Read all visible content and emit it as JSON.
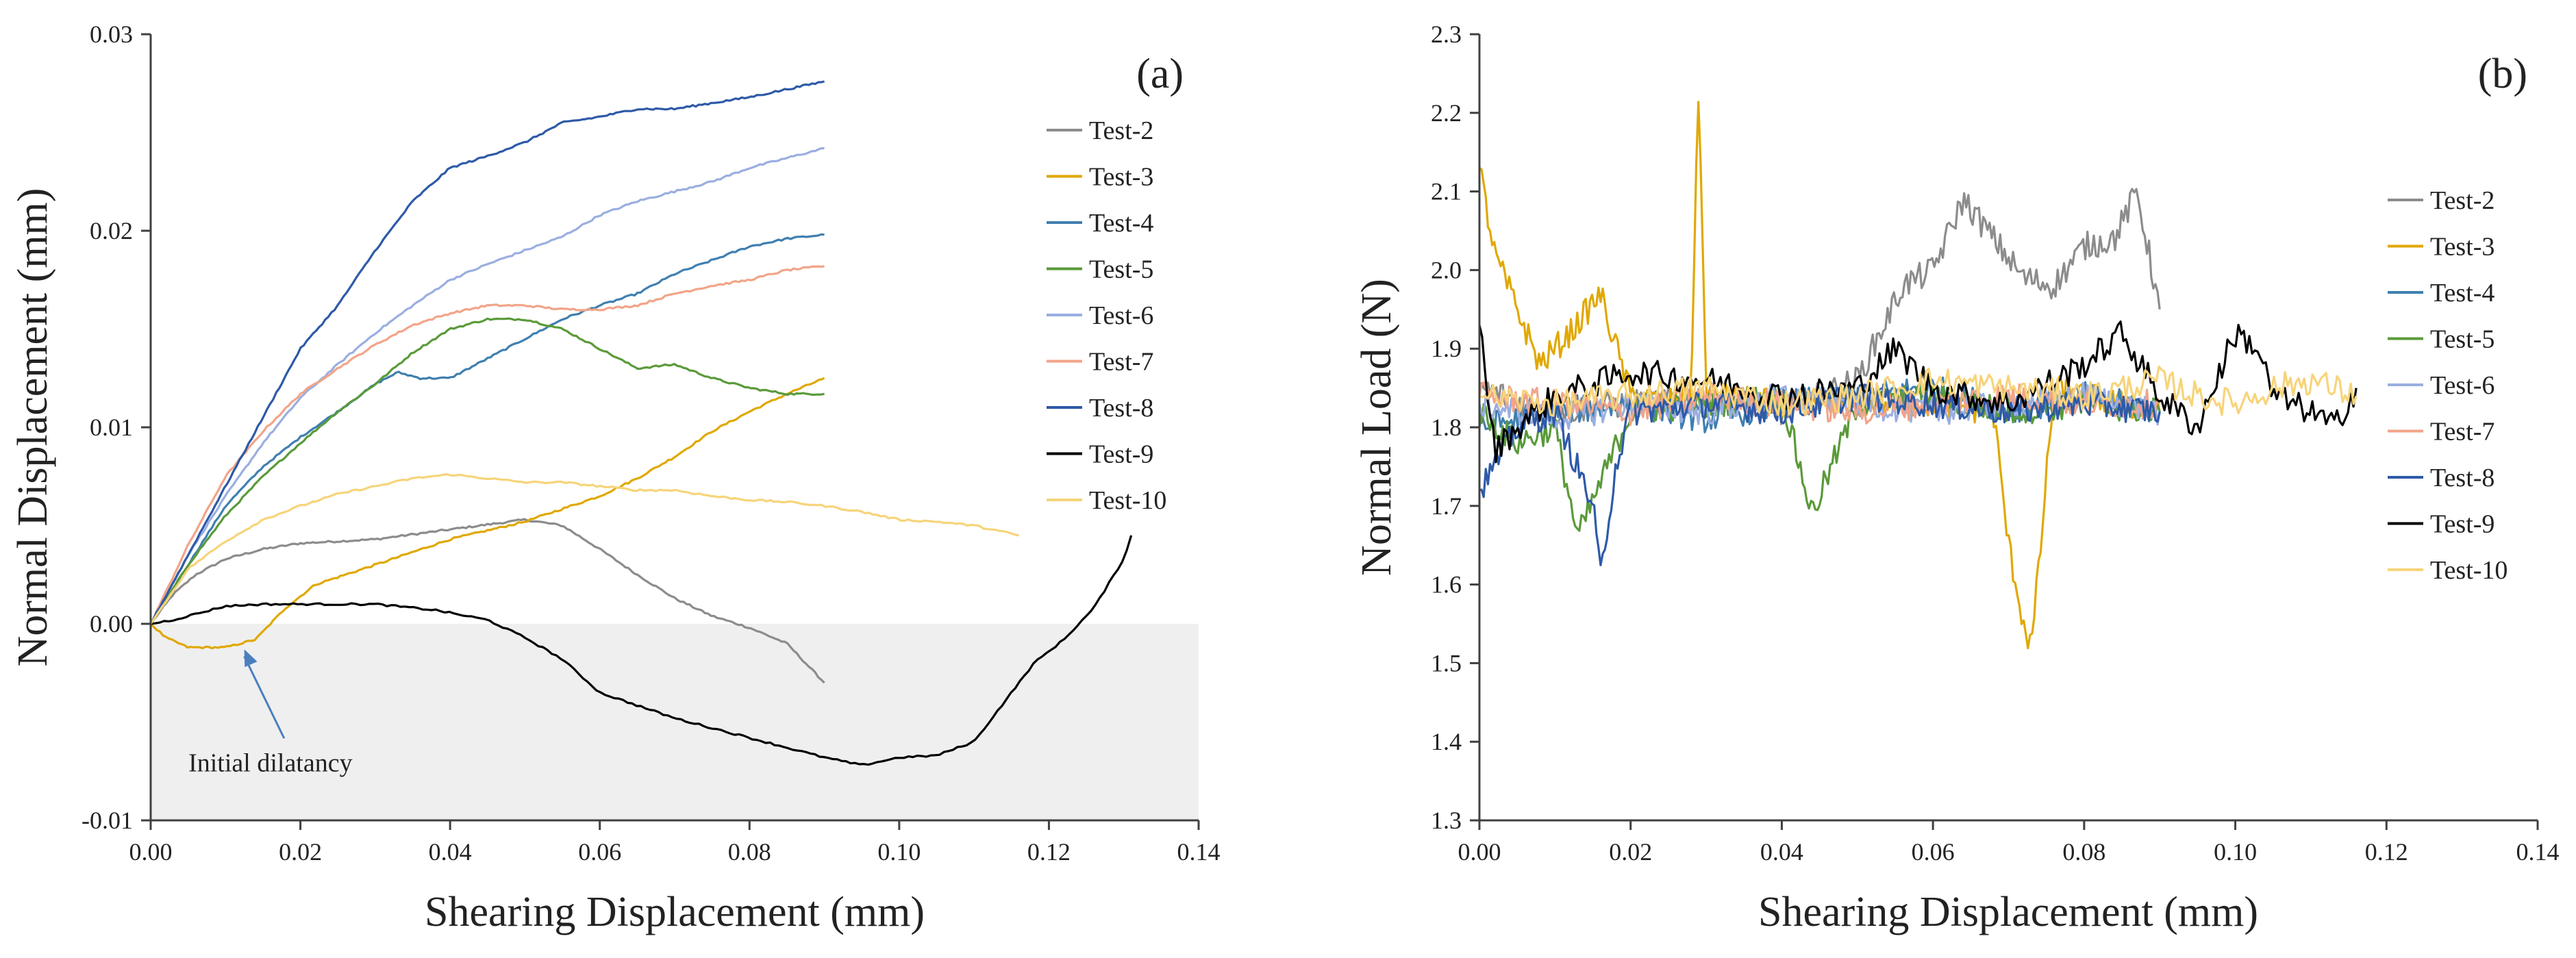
{
  "colors": {
    "Test-2": "#8c8c8c",
    "Test-3": "#e0a800",
    "Test-4": "#3f7fb0",
    "Test-5": "#5a9a3a",
    "Test-6": "#9aaee0",
    "Test-7": "#f2a488",
    "Test-8": "#2e5aa8",
    "Test-9": "#000000",
    "Test-10": "#f7d47a",
    "axis": "#404040",
    "shade": "#efefef",
    "annotation_arrow": "#4a7fc0"
  },
  "chart_data": [
    {
      "panel": "a",
      "type": "line",
      "label": "(a)",
      "xlabel": "Shearing Displacement (mm)",
      "ylabel": "Normal Displacement (mm)",
      "xlim": [
        0,
        0.14
      ],
      "ylim": [
        -0.01,
        0.03
      ],
      "xticks": [
        0.0,
        0.02,
        0.04,
        0.06,
        0.08,
        0.1,
        0.12,
        0.14
      ],
      "xtick_labels": [
        "0.00",
        "0.02",
        "0.04",
        "0.06",
        "0.08",
        "0.10",
        "0.12",
        "0.14"
      ],
      "yticks": [
        -0.01,
        0.0,
        0.01,
        0.02,
        0.03
      ],
      "ytick_labels": [
        "-0.01",
        "0.00",
        "0.01",
        "0.02",
        "0.03"
      ],
      "shaded_region": {
        "y_from": -0.01,
        "y_to": 0.0
      },
      "annotation": {
        "text": "Initial dilatancy",
        "x": 0.016,
        "y": -0.0075,
        "arrow_to": [
          0.0125,
          -0.0013
        ]
      },
      "legend_position": "right",
      "series": [
        {
          "name": "Test-2",
          "x": [
            0,
            0.003,
            0.006,
            0.01,
            0.015,
            0.02,
            0.03,
            0.04,
            0.05,
            0.055,
            0.06,
            0.065,
            0.07,
            0.075,
            0.08,
            0.085,
            0.09
          ],
          "y": [
            0.0,
            0.0015,
            0.0025,
            0.0033,
            0.0038,
            0.0041,
            0.0043,
            0.0048,
            0.0053,
            0.005,
            0.0038,
            0.0025,
            0.0013,
            0.0004,
            -0.0002,
            -0.001,
            -0.003
          ]
        },
        {
          "name": "Test-3",
          "x": [
            0,
            0.002,
            0.005,
            0.01,
            0.014,
            0.018,
            0.022,
            0.03,
            0.04,
            0.05,
            0.06,
            0.065,
            0.07,
            0.075,
            0.08,
            0.085,
            0.09
          ],
          "y": [
            0.0,
            -0.0007,
            -0.0012,
            -0.0012,
            -0.0008,
            0.0008,
            0.002,
            0.003,
            0.0043,
            0.0052,
            0.0065,
            0.0074,
            0.0085,
            0.0098,
            0.0108,
            0.0117,
            0.0125
          ]
        },
        {
          "name": "Test-4",
          "x": [
            0,
            0.005,
            0.01,
            0.015,
            0.02,
            0.025,
            0.03,
            0.033,
            0.036,
            0.04,
            0.045,
            0.05,
            0.055,
            0.06,
            0.065,
            0.07,
            0.075,
            0.08,
            0.085,
            0.09
          ],
          "y": [
            0.0,
            0.003,
            0.006,
            0.008,
            0.0095,
            0.0108,
            0.0122,
            0.0128,
            0.0125,
            0.0125,
            0.0135,
            0.0145,
            0.0155,
            0.0162,
            0.0168,
            0.0178,
            0.0185,
            0.0192,
            0.0196,
            0.0198
          ]
        },
        {
          "name": "Test-5",
          "x": [
            0,
            0.005,
            0.01,
            0.015,
            0.02,
            0.025,
            0.03,
            0.035,
            0.04,
            0.045,
            0.05,
            0.055,
            0.06,
            0.065,
            0.07,
            0.075,
            0.08,
            0.085,
            0.09
          ],
          "y": [
            0.0,
            0.003,
            0.0055,
            0.0075,
            0.0092,
            0.0108,
            0.0122,
            0.0138,
            0.015,
            0.0155,
            0.0155,
            0.015,
            0.014,
            0.013,
            0.0132,
            0.0125,
            0.012,
            0.0117,
            0.0117
          ]
        },
        {
          "name": "Test-6",
          "x": [
            0,
            0.005,
            0.01,
            0.015,
            0.02,
            0.025,
            0.03,
            0.035,
            0.04,
            0.045,
            0.05,
            0.055,
            0.06,
            0.065,
            0.07,
            0.075,
            0.08,
            0.085,
            0.09
          ],
          "y": [
            0.0,
            0.0035,
            0.0065,
            0.0092,
            0.0115,
            0.0132,
            0.0148,
            0.0162,
            0.0175,
            0.0183,
            0.019,
            0.0197,
            0.0208,
            0.0215,
            0.022,
            0.0225,
            0.0232,
            0.0237,
            0.0242
          ]
        },
        {
          "name": "Test-7",
          "x": [
            0,
            0.005,
            0.01,
            0.015,
            0.02,
            0.025,
            0.03,
            0.035,
            0.04,
            0.045,
            0.05,
            0.055,
            0.06,
            0.065,
            0.07,
            0.075,
            0.08,
            0.085,
            0.09
          ],
          "y": [
            0.0,
            0.004,
            0.0075,
            0.0098,
            0.0117,
            0.013,
            0.0142,
            0.0152,
            0.0158,
            0.0162,
            0.0162,
            0.016,
            0.016,
            0.0162,
            0.0168,
            0.0172,
            0.0175,
            0.018,
            0.0182
          ]
        },
        {
          "name": "Test-8",
          "x": [
            0,
            0.005,
            0.01,
            0.015,
            0.02,
            0.025,
            0.03,
            0.035,
            0.04,
            0.045,
            0.05,
            0.055,
            0.06,
            0.065,
            0.07,
            0.075,
            0.08,
            0.085,
            0.09
          ],
          "y": [
            0.0,
            0.0035,
            0.007,
            0.0105,
            0.014,
            0.0162,
            0.019,
            0.0215,
            0.0232,
            0.0238,
            0.0245,
            0.0255,
            0.0258,
            0.0262,
            0.0262,
            0.0265,
            0.0268,
            0.0272,
            0.0276
          ]
        },
        {
          "name": "Test-9",
          "x": [
            0,
            0.003,
            0.006,
            0.01,
            0.015,
            0.02,
            0.03,
            0.038,
            0.045,
            0.05,
            0.055,
            0.06,
            0.07,
            0.08,
            0.09,
            0.095,
            0.1,
            0.105,
            0.11,
            0.115,
            0.118,
            0.122,
            0.126,
            0.13,
            0.131
          ],
          "y": [
            0.0,
            0.0002,
            0.0005,
            0.0009,
            0.001,
            0.001,
            0.001,
            0.0007,
            0.0002,
            -0.0007,
            -0.0018,
            -0.0035,
            -0.0048,
            -0.0058,
            -0.0068,
            -0.0072,
            -0.0068,
            -0.0067,
            -0.006,
            -0.0035,
            -0.002,
            -0.0008,
            0.0008,
            0.0033,
            0.0045
          ]
        },
        {
          "name": "Test-10",
          "x": [
            0,
            0.005,
            0.01,
            0.015,
            0.02,
            0.025,
            0.03,
            0.035,
            0.04,
            0.045,
            0.05,
            0.055,
            0.06,
            0.065,
            0.07,
            0.075,
            0.08,
            0.085,
            0.09,
            0.095,
            0.1,
            0.105,
            0.11,
            0.116
          ],
          "y": [
            0.0,
            0.0028,
            0.0042,
            0.0053,
            0.006,
            0.0066,
            0.007,
            0.0074,
            0.0076,
            0.0074,
            0.0072,
            0.0072,
            0.007,
            0.0068,
            0.0068,
            0.0065,
            0.0063,
            0.0062,
            0.006,
            0.0057,
            0.0053,
            0.0052,
            0.005,
            0.0045
          ]
        }
      ]
    },
    {
      "panel": "b",
      "type": "line",
      "label": "(b)",
      "xlabel": "Shearing Displacement (mm)",
      "ylabel": "Normal Load (N)",
      "xlim": [
        0,
        0.14
      ],
      "ylim": [
        1.3,
        2.3
      ],
      "xticks": [
        0.0,
        0.02,
        0.04,
        0.06,
        0.08,
        0.1,
        0.12,
        0.14
      ],
      "xtick_labels": [
        "0.00",
        "0.02",
        "0.04",
        "0.06",
        "0.08",
        "0.10",
        "0.12",
        "0.14"
      ],
      "yticks": [
        1.3,
        1.4,
        1.5,
        1.6,
        1.7,
        1.8,
        1.9,
        2.0,
        2.1,
        2.2,
        2.3
      ],
      "ytick_labels": [
        "1.3",
        "1.4",
        "1.5",
        "1.6",
        "1.7",
        "1.8",
        "1.9",
        "2.0",
        "2.1",
        "2.2",
        "2.3"
      ],
      "legend_position": "right",
      "series": [
        {
          "name": "Test-2",
          "x": [
            0,
            0.01,
            0.02,
            0.03,
            0.04,
            0.05,
            0.053,
            0.056,
            0.06,
            0.064,
            0.068,
            0.072,
            0.076,
            0.08,
            0.084,
            0.087,
            0.09
          ],
          "y": [
            1.85,
            1.82,
            1.83,
            1.84,
            1.82,
            1.86,
            1.92,
            1.98,
            2.0,
            2.09,
            2.04,
            1.99,
            1.98,
            2.03,
            2.04,
            2.1,
            1.95
          ]
        },
        {
          "name": "Test-3",
          "x": [
            0,
            0.002,
            0.005,
            0.008,
            0.012,
            0.016,
            0.02,
            0.025,
            0.028,
            0.029,
            0.03,
            0.04,
            0.05,
            0.06,
            0.068,
            0.07,
            0.072,
            0.073,
            0.074,
            0.076,
            0.08,
            0.09
          ],
          "y": [
            2.13,
            2.02,
            1.95,
            1.88,
            1.92,
            1.97,
            1.84,
            1.83,
            1.85,
            2.24,
            1.84,
            1.83,
            1.83,
            1.83,
            1.82,
            1.65,
            1.55,
            1.52,
            1.62,
            1.85,
            1.84,
            1.82
          ]
        },
        {
          "name": "Test-4",
          "x": [
            0,
            0.01,
            0.02,
            0.03,
            0.04,
            0.05,
            0.06,
            0.07,
            0.08,
            0.09
          ],
          "y": [
            1.8,
            1.82,
            1.83,
            1.81,
            1.83,
            1.84,
            1.85,
            1.82,
            1.84,
            1.82
          ]
        },
        {
          "name": "Test-5",
          "x": [
            0,
            0.005,
            0.01,
            0.013,
            0.02,
            0.03,
            0.04,
            0.044,
            0.05,
            0.06,
            0.07,
            0.08,
            0.09
          ],
          "y": [
            1.82,
            1.78,
            1.8,
            1.66,
            1.82,
            1.83,
            1.84,
            1.69,
            1.83,
            1.84,
            1.82,
            1.83,
            1.82
          ]
        },
        {
          "name": "Test-6",
          "x": [
            0,
            0.01,
            0.02,
            0.03,
            0.04,
            0.05,
            0.06,
            0.07,
            0.08,
            0.09
          ],
          "y": [
            1.83,
            1.81,
            1.83,
            1.82,
            1.84,
            1.83,
            1.82,
            1.83,
            1.84,
            1.82
          ]
        },
        {
          "name": "Test-7",
          "x": [
            0,
            0.01,
            0.02,
            0.03,
            0.04,
            0.05,
            0.06,
            0.07,
            0.08,
            0.09
          ],
          "y": [
            1.84,
            1.83,
            1.82,
            1.84,
            1.83,
            1.82,
            1.83,
            1.84,
            1.83,
            1.83
          ]
        },
        {
          "name": "Test-8",
          "x": [
            0,
            0.005,
            0.01,
            0.015,
            0.016,
            0.018,
            0.02,
            0.03,
            0.04,
            0.05,
            0.06,
            0.07,
            0.08,
            0.09
          ],
          "y": [
            1.72,
            1.8,
            1.82,
            1.7,
            1.61,
            1.75,
            1.82,
            1.83,
            1.82,
            1.84,
            1.83,
            1.82,
            1.83,
            1.82
          ]
        },
        {
          "name": "Test-9",
          "x": [
            0,
            0.002,
            0.005,
            0.01,
            0.02,
            0.03,
            0.04,
            0.05,
            0.055,
            0.06,
            0.07,
            0.08,
            0.085,
            0.09,
            0.095,
            0.1,
            0.103,
            0.105,
            0.11,
            0.113,
            0.116
          ],
          "y": [
            1.93,
            1.77,
            1.8,
            1.84,
            1.87,
            1.86,
            1.84,
            1.85,
            1.9,
            1.85,
            1.83,
            1.88,
            1.92,
            1.84,
            1.8,
            1.92,
            1.9,
            1.84,
            1.82,
            1.8,
            1.85
          ]
        },
        {
          "name": "Test-10",
          "x": [
            0,
            0.01,
            0.02,
            0.03,
            0.04,
            0.05,
            0.06,
            0.07,
            0.08,
            0.09,
            0.095,
            0.1,
            0.105,
            0.11,
            0.116
          ],
          "y": [
            1.84,
            1.83,
            1.84,
            1.85,
            1.83,
            1.84,
            1.86,
            1.85,
            1.84,
            1.86,
            1.84,
            1.83,
            1.85,
            1.86,
            1.84
          ]
        }
      ]
    }
  ]
}
